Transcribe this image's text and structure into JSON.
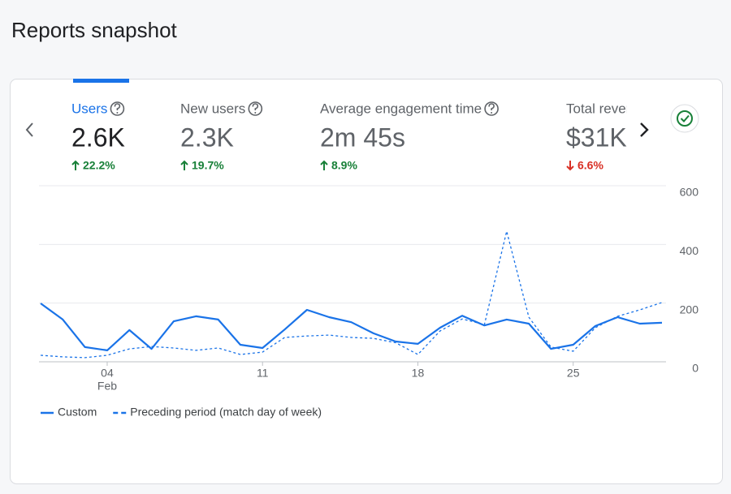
{
  "header": {
    "title": "Reports snapshot"
  },
  "metrics": [
    {
      "label": "Users",
      "value": "2.6K",
      "change": "22.2%",
      "direction": "up",
      "selected": true
    },
    {
      "label": "New users",
      "value": "2.3K",
      "change": "19.7%",
      "direction": "up",
      "selected": false
    },
    {
      "label": "Average engagement time",
      "value": "2m 45s",
      "change": "8.9%",
      "direction": "up",
      "selected": false
    },
    {
      "label": "Total revenue",
      "value": "$31K",
      "change": "6.6%",
      "direction": "down",
      "selected": false
    }
  ],
  "chart_data": {
    "type": "line",
    "x": [
      1,
      2,
      3,
      4,
      5,
      6,
      7,
      8,
      9,
      10,
      11,
      12,
      13,
      14,
      15,
      16,
      17,
      18,
      19,
      20,
      21,
      22,
      23,
      24,
      25,
      26,
      27,
      28,
      29
    ],
    "xlim": [
      1,
      29
    ],
    "xticks": [
      {
        "value": 4,
        "label": "04"
      },
      11,
      18,
      25
    ],
    "month_label": "Feb",
    "ylim": [
      0,
      600
    ],
    "yticks": [
      0,
      200,
      400,
      600
    ],
    "grid": true,
    "series": [
      {
        "name": "Custom",
        "color": "#1a73e8",
        "dashed": false,
        "values": [
          199,
          144,
          50,
          39,
          108,
          44,
          138,
          155,
          144,
          58,
          47,
          110,
          177,
          152,
          135,
          97,
          69,
          61,
          116,
          157,
          124,
          144,
          130,
          44,
          58,
          122,
          152,
          130,
          133
        ]
      },
      {
        "name": "Preceding period (match day of week)",
        "color": "#1a73e8",
        "dashed": true,
        "values": [
          22,
          17,
          14,
          22,
          44,
          52,
          47,
          39,
          47,
          25,
          33,
          83,
          88,
          91,
          83,
          80,
          65,
          25,
          105,
          146,
          127,
          445,
          152,
          50,
          36,
          116,
          155,
          177,
          202
        ]
      }
    ]
  }
}
